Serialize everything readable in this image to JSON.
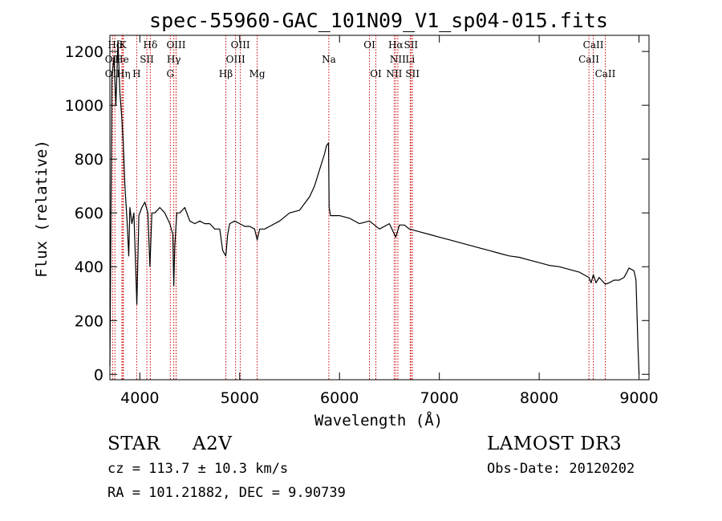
{
  "chart_data": {
    "type": "line",
    "title": "spec-55960-GAC_101N09_V1_sp04-015.fits",
    "xlabel": "Wavelength (Å)",
    "ylabel": "Flux (relative)",
    "xlim": [
      3700,
      9100
    ],
    "ylim": [
      -20,
      1260
    ],
    "xticks": [
      4000,
      5000,
      6000,
      7000,
      8000,
      9000
    ],
    "yticks": [
      0,
      200,
      400,
      600,
      800,
      1000,
      1200
    ],
    "xtick_labels": [
      "4000",
      "5000",
      "6000",
      "7000",
      "8000",
      "9000"
    ],
    "ytick_labels": [
      "0",
      "200",
      "400",
      "600",
      "800",
      "1000",
      "1200"
    ],
    "series": [
      {
        "name": "spectrum",
        "x": [
          3700,
          3720,
          3740,
          3760,
          3780,
          3800,
          3820,
          3835,
          3850,
          3870,
          3889,
          3900,
          3920,
          3940,
          3970,
          3990,
          4020,
          4050,
          4080,
          4101,
          4120,
          4150,
          4200,
          4250,
          4300,
          4330,
          4340,
          4350,
          4370,
          4400,
          4450,
          4500,
          4550,
          4600,
          4650,
          4700,
          4750,
          4800,
          4830,
          4861,
          4880,
          4900,
          4950,
          5000,
          5050,
          5100,
          5150,
          5175,
          5200,
          5250,
          5300,
          5400,
          5500,
          5600,
          5700,
          5750,
          5800,
          5850,
          5870,
          5890,
          5896,
          5910,
          5950,
          6000,
          6100,
          6200,
          6300,
          6400,
          6500,
          6563,
          6580,
          6600,
          6650,
          6700,
          6800,
          6900,
          7000,
          7100,
          7200,
          7300,
          7400,
          7500,
          7600,
          7700,
          7800,
          7900,
          8000,
          8100,
          8200,
          8300,
          8400,
          8498,
          8520,
          8542,
          8570,
          8600,
          8662,
          8700,
          8750,
          8800,
          8850,
          8880,
          8900,
          8950,
          8970,
          8990,
          9000
        ],
        "values": [
          30,
          1100,
          1180,
          1000,
          1240,
          1050,
          950,
          850,
          700,
          580,
          440,
          620,
          560,
          600,
          260,
          590,
          620,
          640,
          600,
          400,
          600,
          600,
          620,
          600,
          560,
          520,
          330,
          480,
          600,
          600,
          620,
          570,
          560,
          570,
          560,
          560,
          540,
          540,
          460,
          440,
          520,
          560,
          570,
          560,
          550,
          550,
          540,
          500,
          540,
          540,
          550,
          570,
          600,
          610,
          660,
          700,
          760,
          820,
          850,
          860,
          620,
          590,
          590,
          590,
          580,
          560,
          570,
          540,
          560,
          510,
          530,
          555,
          555,
          540,
          530,
          520,
          510,
          500,
          490,
          480,
          470,
          460,
          450,
          440,
          435,
          425,
          415,
          405,
          400,
          390,
          380,
          360,
          340,
          370,
          340,
          360,
          335,
          340,
          350,
          350,
          360,
          380,
          395,
          385,
          350,
          100,
          0
        ]
      }
    ],
    "lines": [
      {
        "name": "Hδ",
        "x": 3750,
        "row": 0
      },
      {
        "name": "K",
        "x": 3830,
        "row": 0
      },
      {
        "name": "Hδ",
        "x": 4105,
        "row": 0
      },
      {
        "name": "OIII",
        "x": 4363,
        "row": 0
      },
      {
        "name": "OIII",
        "x": 5007,
        "row": 0
      },
      {
        "name": "OI",
        "x": 6300,
        "row": 0
      },
      {
        "name": "Hα",
        "x": 6563,
        "row": 0
      },
      {
        "name": "SII",
        "x": 6716,
        "row": 0
      },
      {
        "name": "CaII",
        "x": 8542,
        "row": 0
      },
      {
        "name": "OII",
        "x": 3727,
        "row": 1
      },
      {
        "name": "He",
        "x": 3820,
        "row": 1
      },
      {
        "name": "SII",
        "x": 4070,
        "row": 1
      },
      {
        "name": "Hγ",
        "x": 4340,
        "row": 1
      },
      {
        "name": "OIII",
        "x": 4959,
        "row": 1
      },
      {
        "name": "Na",
        "x": 5893,
        "row": 1
      },
      {
        "name": "NII",
        "x": 6584,
        "row": 1
      },
      {
        "name": "Li",
        "x": 6708,
        "row": 1
      },
      {
        "name": "CaII",
        "x": 8498,
        "row": 1
      },
      {
        "name": "OII",
        "x": 3727,
        "row": 2
      },
      {
        "name": "Hη",
        "x": 3835,
        "row": 2
      },
      {
        "name": "H",
        "x": 3968,
        "row": 2
      },
      {
        "name": "G",
        "x": 4305,
        "row": 2
      },
      {
        "name": "Hβ",
        "x": 4861,
        "row": 2
      },
      {
        "name": "Mg",
        "x": 5175,
        "row": 2
      },
      {
        "name": "OI",
        "x": 6364,
        "row": 2
      },
      {
        "name": "NII",
        "x": 6548,
        "row": 2
      },
      {
        "name": "SII",
        "x": 6731,
        "row": 2
      },
      {
        "name": "CaII",
        "x": 8662,
        "row": 2
      }
    ],
    "marker_color": "#cc0000"
  },
  "info": {
    "object_class": "STAR",
    "subclass": "A2V",
    "survey": "LAMOST DR3",
    "cz": "cz = 113.7 ± 10.3 km/s",
    "obs_date": "Obs-Date: 20120202",
    "radec": "RA = 101.21882, DEC =    9.90739"
  }
}
